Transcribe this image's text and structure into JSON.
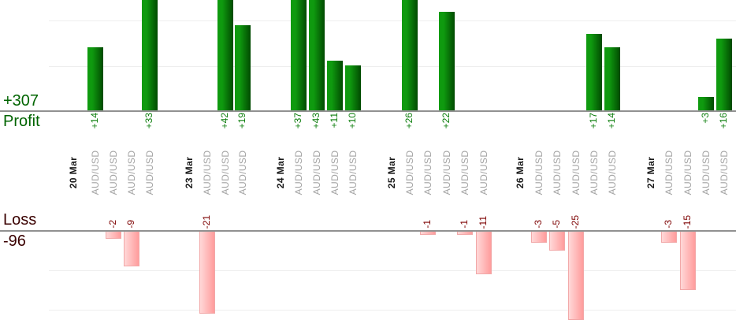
{
  "chart_data": {
    "type": "bar",
    "description": "Daily profit and loss bars per trade, grouped by date",
    "profit_section": {
      "total": "+307",
      "title": "Profit",
      "gridline_step": 10,
      "axis_range": [
        0,
        24.5
      ]
    },
    "loss_section": {
      "title": "Loss",
      "total": "-96",
      "gridline_step": 10,
      "axis_range": [
        0,
        -22.8
      ]
    },
    "x_axis": {
      "dates": [
        "20 Mar",
        "23 Mar",
        "24 Mar",
        "25 Mar",
        "26 Mar",
        "27 Mar"
      ],
      "symbol": "AUD/USD"
    },
    "groups": [
      {
        "date": "20 Mar",
        "trades": [
          {
            "symbol": "AUD/USD",
            "value": 14,
            "label": "+14"
          },
          {
            "symbol": "AUD/USD",
            "value": -2,
            "label": "-2"
          },
          {
            "symbol": "AUD/USD",
            "value": -9,
            "label": "-9"
          },
          {
            "symbol": "AUD/USD",
            "value": 33,
            "label": "+33"
          }
        ]
      },
      {
        "date": "23 Mar",
        "trades": [
          {
            "symbol": "AUD/USD",
            "value": -21,
            "label": "-21"
          },
          {
            "symbol": "AUD/USD",
            "value": 42,
            "label": "+42"
          },
          {
            "symbol": "AUD/USD",
            "value": 19,
            "label": "+19"
          }
        ]
      },
      {
        "date": "24 Mar",
        "trades": [
          {
            "symbol": "AUD/USD",
            "value": 37,
            "label": "+37"
          },
          {
            "symbol": "AUD/USD",
            "value": 43,
            "label": "+43"
          },
          {
            "symbol": "AUD/USD",
            "value": 11,
            "label": "+11"
          },
          {
            "symbol": "AUD/USD",
            "value": 10,
            "label": "+10"
          }
        ]
      },
      {
        "date": "25 Mar",
        "trades": [
          {
            "symbol": "AUD/USD",
            "value": 26,
            "label": "+26"
          },
          {
            "symbol": "AUD/USD",
            "value": -1,
            "label": "-1"
          },
          {
            "symbol": "AUD/USD",
            "value": 22,
            "label": "+22"
          },
          {
            "symbol": "AUD/USD",
            "value": -1,
            "label": "-1"
          },
          {
            "symbol": "AUD/USD",
            "value": -11,
            "label": "-11"
          }
        ]
      },
      {
        "date": "26 Mar",
        "trades": [
          {
            "symbol": "AUD/USD",
            "value": -3,
            "label": "-3"
          },
          {
            "symbol": "AUD/USD",
            "value": -5,
            "label": "-5"
          },
          {
            "symbol": "AUD/USD",
            "value": -25,
            "label": "-25"
          },
          {
            "symbol": "AUD/USD",
            "value": 17,
            "label": "+17"
          },
          {
            "symbol": "AUD/USD",
            "value": 14,
            "label": "+14"
          }
        ]
      },
      {
        "date": "27 Mar",
        "trades": [
          {
            "symbol": "AUD/USD",
            "value": -3,
            "label": "-3"
          },
          {
            "symbol": "AUD/USD",
            "value": -15,
            "label": "-15"
          },
          {
            "symbol": "AUD/USD",
            "value": 3,
            "label": "+3"
          },
          {
            "symbol": "AUD/USD",
            "value": 16,
            "label": "+16"
          }
        ]
      }
    ],
    "colors": {
      "profit_bar_light": "#0f9a0f",
      "profit_bar_dark": "#014a01",
      "profit_value_text": "#0b7d0b",
      "profit_total_text": "#006400",
      "loss_bar_light": "#ffd8d8",
      "loss_bar_dark": "#ff9c9c",
      "loss_bar_border": "#f2a8a8",
      "loss_value_text": "#7d0000",
      "loss_total_text": "#3a0000",
      "date_text": "#1a1a1a",
      "symbol_text": "#a3a3a3",
      "axis_line": "#919191",
      "gridline": "#ededed"
    }
  }
}
